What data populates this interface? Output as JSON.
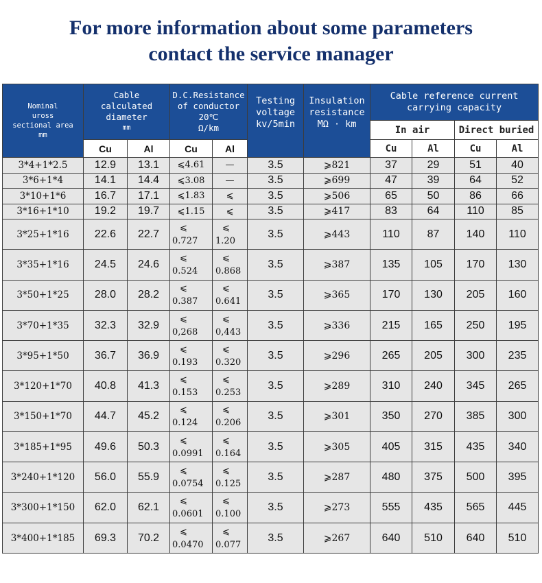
{
  "title": {
    "line1": "For more information about some parameters",
    "line2": "contact the service manager"
  },
  "headers": {
    "nominal": [
      "Nominal",
      "uross",
      "sectional area",
      "mm"
    ],
    "diameter": [
      "Cable",
      "calculated",
      "diameter",
      "mm"
    ],
    "resistance": [
      "D.C.Resistance",
      "of conductor",
      "20℃",
      "Ω/km"
    ],
    "voltage": [
      "Testing",
      "voltage",
      "kv/5min"
    ],
    "insulation": [
      "Insulation",
      "resistance",
      "MΩ · km"
    ],
    "current": [
      "Cable reference current",
      "carrying capacity"
    ],
    "in_air": "In air",
    "direct_buried": "Direct buried",
    "diam_cu": "Cu",
    "diam_al": "Al",
    "res_cu": "Cu",
    "res_al": "Al",
    "air_cu": "Cu",
    "air_al": "Al",
    "bur_cu": "Cu",
    "bur_al": "Al"
  },
  "rows": [
    {
      "model": "3*4+1*2.5",
      "d_cu": "12.9",
      "d_al": "13.1",
      "r_cu": "⩽4.61",
      "r_al": "—",
      "split": false,
      "v": "3.5",
      "ins": "⩾821",
      "air_cu": "37",
      "air_al": "29",
      "bur_cu": "51",
      "bur_al": "40"
    },
    {
      "model": "3*6+1*4",
      "d_cu": "14.1",
      "d_al": "14.4",
      "r_cu": "⩽3.08",
      "r_al": "—",
      "split": false,
      "v": "3.5",
      "ins": "⩾699",
      "air_cu": "47",
      "air_al": "39",
      "bur_cu": "64",
      "bur_al": "52"
    },
    {
      "model": "3*10+1*6",
      "d_cu": "16.7",
      "d_al": "17.1",
      "r_cu": "⩽1.83",
      "r_al": "⩽",
      "split": false,
      "v": "3.5",
      "ins": "⩾506",
      "air_cu": "65",
      "air_al": "50",
      "bur_cu": "86",
      "bur_al": "66"
    },
    {
      "model": "3*16+1*10",
      "d_cu": "19.2",
      "d_al": "19.7",
      "r_cu": "⩽1.15",
      "r_al": "⩽",
      "split": false,
      "v": "3.5",
      "ins": "⩾417",
      "air_cu": "83",
      "air_al": "64",
      "bur_cu": "110",
      "bur_al": "85"
    },
    {
      "model": "3*25+1*16",
      "d_cu": "22.6",
      "d_al": "22.7",
      "r_cu": "0.727",
      "r_al": "1.20",
      "split": true,
      "v": "3.5",
      "ins": "⩾443",
      "air_cu": "110",
      "air_al": "87",
      "bur_cu": "140",
      "bur_al": "110"
    },
    {
      "model": "3*35+1*16",
      "d_cu": "24.5",
      "d_al": "24.6",
      "r_cu": "0.524",
      "r_al": "0.868",
      "split": true,
      "v": "3.5",
      "ins": "⩾387",
      "air_cu": "135",
      "air_al": "105",
      "bur_cu": "170",
      "bur_al": "130"
    },
    {
      "model": "3*50+1*25",
      "d_cu": "28.0",
      "d_al": "28.2",
      "r_cu": "0.387",
      "r_al": "0.641",
      "split": true,
      "v": "3.5",
      "ins": "⩾365",
      "air_cu": "170",
      "air_al": "130",
      "bur_cu": "205",
      "bur_al": "160"
    },
    {
      "model": "3*70+1*35",
      "d_cu": "32.3",
      "d_al": "32.9",
      "r_cu": "0,268",
      "r_al": "0,443",
      "split": true,
      "v": "3.5",
      "ins": "⩾336",
      "air_cu": "215",
      "air_al": "165",
      "bur_cu": "250",
      "bur_al": "195"
    },
    {
      "model": "3*95+1*50",
      "d_cu": "36.7",
      "d_al": "36.9",
      "r_cu": "0.193",
      "r_al": "0.320",
      "split": true,
      "v": "3.5",
      "ins": "⩾296",
      "air_cu": "265",
      "air_al": "205",
      "bur_cu": "300",
      "bur_al": "235"
    },
    {
      "model": "3*120+1*70",
      "d_cu": "40.8",
      "d_al": "41.3",
      "r_cu": "0.153",
      "r_al": "0.253",
      "split": true,
      "v": "3.5",
      "ins": "⩾289",
      "air_cu": "310",
      "air_al": "240",
      "bur_cu": "345",
      "bur_al": "265"
    },
    {
      "model": "3*150+1*70",
      "d_cu": "44.7",
      "d_al": "45.2",
      "r_cu": "0.124",
      "r_al": "0.206",
      "split": true,
      "v": "3.5",
      "ins": "⩾301",
      "air_cu": "350",
      "air_al": "270",
      "bur_cu": "385",
      "bur_al": "300"
    },
    {
      "model": "3*185+1*95",
      "d_cu": "49.6",
      "d_al": "50.3",
      "r_cu": "0.0991",
      "r_al": "0.164",
      "split": true,
      "v": "3.5",
      "ins": "⩾305",
      "air_cu": "405",
      "air_al": "315",
      "bur_cu": "435",
      "bur_al": "340"
    },
    {
      "model": "3*240+1*120",
      "d_cu": "56.0",
      "d_al": "55.9",
      "r_cu": "0.0754",
      "r_al": "0.125",
      "split": true,
      "v": "3.5",
      "ins": "⩾287",
      "air_cu": "480",
      "air_al": "375",
      "bur_cu": "500",
      "bur_al": "395"
    },
    {
      "model": "3*300+1*150",
      "d_cu": "62.0",
      "d_al": "62.1",
      "r_cu": "0.0601",
      "r_al": "0.100",
      "split": true,
      "v": "3.5",
      "ins": "⩾273",
      "air_cu": "555",
      "air_al": "435",
      "bur_cu": "565",
      "bur_al": "445"
    },
    {
      "model": "3*400+1*185",
      "d_cu": "69.3",
      "d_al": "70.2",
      "r_cu": "0.0470",
      "r_al": "0.077",
      "split": true,
      "v": "3.5",
      "ins": "⩾267",
      "air_cu": "640",
      "air_al": "510",
      "bur_cu": "640",
      "bur_al": "510"
    }
  ],
  "le_symbol": "⩽"
}
